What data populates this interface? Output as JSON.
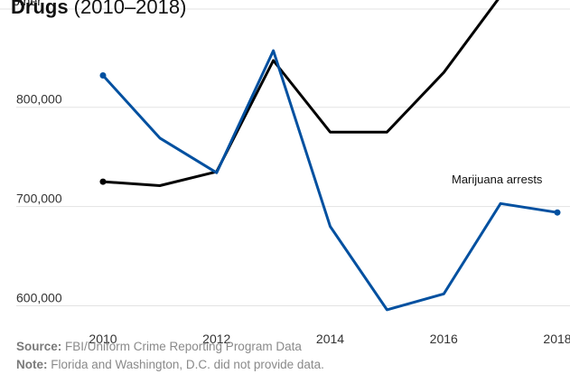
{
  "chart_data": {
    "type": "line",
    "title_bold": "Drugs",
    "title_rest": " (2010–2018)",
    "overlapping_text": "other",
    "x": [
      2010,
      2010.5,
      2011,
      2011.5,
      2012,
      2012.5,
      2013,
      2013.5,
      2014,
      2014.5,
      2015,
      2015.5,
      2016,
      2016.5,
      2017,
      2017.5,
      2018
    ],
    "x_ticks": [
      "2010",
      "2012",
      "2014",
      "2016",
      "2018"
    ],
    "y_ticks": [
      600000,
      700000,
      800000
    ],
    "y_tick_labels": [
      "600,000",
      "700,000",
      "800,000"
    ],
    "ylim": [
      585000,
      908000
    ],
    "series": [
      {
        "name": "",
        "color": "#000000",
        "values": [
          725000,
          721000,
          735000,
          847000,
          775000,
          775000,
          835000,
          912000,
          990000
        ],
        "x": [
          2010,
          2010.5,
          2011,
          2011.5,
          2012,
          2012.5,
          2013,
          2013.5,
          2014
        ]
      },
      {
        "name": "Marijuana arrests",
        "color": "#0050a0",
        "values": [
          832000,
          769000,
          734000,
          857000,
          680000,
          596000,
          612000,
          703000,
          694000
        ],
        "x": [
          2010,
          2010.5,
          2011,
          2011.5,
          2012,
          2012.5,
          2013,
          2013.5,
          2014
        ]
      }
    ],
    "annotation": "Marijuana arrests"
  },
  "footer": {
    "source_label": "Source:",
    "source_text": " FBI/Uniform Crime Reporting Program Data",
    "note_label": "Note:",
    "note_text": " Florida and Washington, D.C. did not provide data."
  }
}
